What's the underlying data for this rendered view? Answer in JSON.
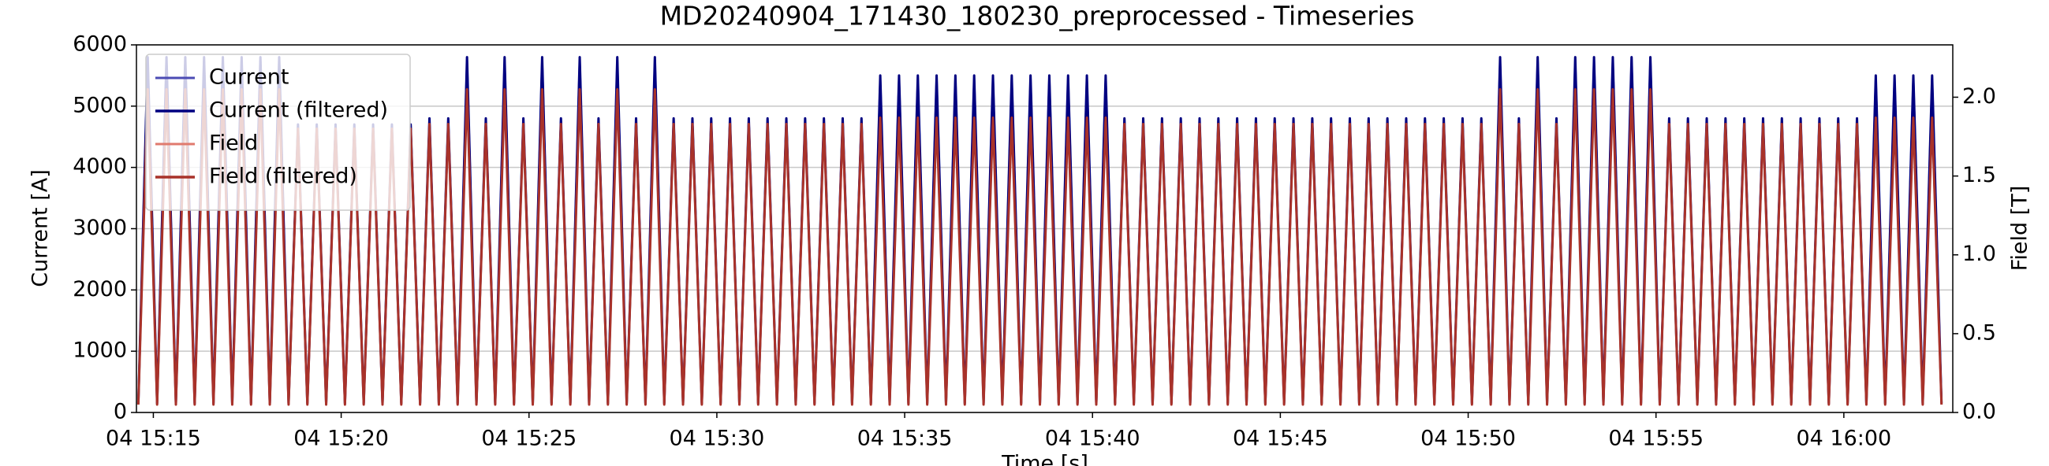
{
  "chart_data": {
    "type": "line",
    "title": "MD20240904_171430_180230_preprocessed - Timeseries",
    "xlabel": "Time [s]",
    "ylabel": "Current [A]",
    "y2label": "Field [T]",
    "xlim": [
      914.55,
      962.9
    ],
    "xticks": [
      {
        "value": 915,
        "label": "04 15:15"
      },
      {
        "value": 920,
        "label": "04 15:20"
      },
      {
        "value": 925,
        "label": "04 15:25"
      },
      {
        "value": 930,
        "label": "04 15:30"
      },
      {
        "value": 935,
        "label": "04 15:35"
      },
      {
        "value": 940,
        "label": "04 15:40"
      },
      {
        "value": 945,
        "label": "04 15:45"
      },
      {
        "value": 950,
        "label": "04 15:50"
      },
      {
        "value": 955,
        "label": "04 15:55"
      },
      {
        "value": 960,
        "label": "04 16:00"
      }
    ],
    "ylim": [
      0,
      6000
    ],
    "yticks": [
      0,
      1000,
      2000,
      3000,
      4000,
      5000,
      6000
    ],
    "y2lim": [
      0,
      2.332
    ],
    "y2ticks": [
      {
        "value": 0,
        "label": "0.0"
      },
      0.5,
      {
        "value": 1,
        "label": "1.0"
      },
      1.5,
      {
        "value": 2,
        "label": "2.0"
      }
    ],
    "grid": true,
    "legend": "upper left",
    "x": [
      914.6,
      914.85,
      915.1,
      915.35,
      915.6,
      915.85,
      916.1,
      916.35,
      916.6,
      916.85,
      917.1,
      917.35,
      917.6,
      917.85,
      918.1,
      918.35,
      918.6,
      918.85,
      919.1,
      919.35,
      919.6,
      919.85,
      920.1,
      920.35,
      920.6,
      920.85,
      921.1,
      921.35,
      921.6,
      921.85,
      922.1,
      922.35,
      922.6,
      922.85,
      923.1,
      923.35,
      923.6,
      923.85,
      924.1,
      924.35,
      924.6,
      924.85,
      925.1,
      925.35,
      925.6,
      925.85,
      926.1,
      926.35,
      926.6,
      926.85,
      927.1,
      927.35,
      927.6,
      927.85,
      928.1,
      928.35,
      928.6,
      928.85,
      929.1,
      929.35,
      929.6,
      929.85,
      930.1,
      930.35,
      930.6,
      930.85,
      931.1,
      931.35,
      931.6,
      931.85,
      932.1,
      932.35,
      932.6,
      932.85,
      933.1,
      933.35,
      933.6,
      933.85,
      934.1,
      934.35,
      934.6,
      934.85,
      935.1,
      935.35,
      935.6,
      935.85,
      936.1,
      936.35,
      936.6,
      936.85,
      937.1,
      937.35,
      937.6,
      937.85,
      938.1,
      938.35,
      938.6,
      938.85,
      939.1,
      939.35,
      939.6,
      939.85,
      940.1,
      940.35,
      940.6,
      940.85,
      941.1,
      941.35,
      941.6,
      941.85,
      942.1,
      942.35,
      942.6,
      942.85,
      943.1,
      943.35,
      943.6,
      943.85,
      944.1,
      944.35,
      944.6,
      944.85,
      945.1,
      945.35,
      945.6,
      945.85,
      946.1,
      946.35,
      946.6,
      946.85,
      947.1,
      947.35,
      947.6,
      947.85,
      948.1,
      948.35,
      948.6,
      948.85,
      949.1,
      949.35,
      949.6,
      949.85,
      950.1,
      950.35,
      950.6,
      950.85,
      951.1,
      951.35,
      951.6,
      951.85,
      952.1,
      952.35,
      952.6,
      952.85,
      953.1,
      953.35,
      953.6,
      953.85,
      954.1,
      954.35,
      954.6,
      954.85,
      955.1,
      955.35,
      955.6,
      955.85,
      956.1,
      956.35,
      956.6,
      956.85,
      957.1,
      957.35,
      957.6,
      957.85,
      958.1,
      958.35,
      958.6,
      958.85,
      959.1,
      959.35,
      959.6,
      959.85,
      960.1,
      960.35,
      960.6,
      960.85,
      961.1,
      961.35,
      961.6,
      961.85,
      962.1,
      962.35,
      962.6
    ],
    "series": [
      {
        "name": "Current",
        "color": "#4b4bb4",
        "values": [
          150,
          5800,
          150,
          5800,
          150,
          5800,
          150,
          5800,
          150,
          5800,
          150,
          5800,
          150,
          5800,
          150,
          5800,
          150,
          4700,
          150,
          4700,
          150,
          4700,
          150,
          4700,
          150,
          4700,
          150,
          4700,
          150,
          4700,
          150,
          4800,
          150,
          4800,
          150,
          5800,
          150,
          4800,
          150,
          5800,
          150,
          4800,
          150,
          5800,
          150,
          4800,
          150,
          5800,
          150,
          4800,
          150,
          5800,
          150,
          4800,
          150,
          5800,
          150,
          4800,
          150,
          4800,
          150,
          4800,
          150,
          4800,
          150,
          4800,
          150,
          4800,
          150,
          4800,
          150,
          4800,
          150,
          4800,
          150,
          4800,
          150,
          4800,
          150,
          5500,
          150,
          5500,
          150,
          5500,
          150,
          5500,
          150,
          5500,
          150,
          5500,
          150,
          5500,
          150,
          5500,
          150,
          5500,
          150,
          5500,
          150,
          5500,
          150,
          5500,
          150,
          5500,
          150,
          4800,
          150,
          4800,
          150,
          4800,
          150,
          4800,
          150,
          4800,
          150,
          4800,
          150,
          4800,
          150,
          4800,
          150,
          4800,
          150,
          4800,
          150,
          4800,
          150,
          4800,
          150,
          4800,
          150,
          4800,
          150,
          4800,
          150,
          4800,
          150,
          4800,
          150,
          4800,
          150,
          4800,
          150,
          4800,
          150,
          5800,
          150,
          4800,
          150,
          5800,
          150,
          4800,
          150,
          5800,
          150,
          5800,
          150,
          5800,
          150,
          5800,
          150,
          5800,
          150,
          4800,
          150,
          4800,
          150,
          4800,
          150,
          4800,
          150,
          4800,
          150,
          4800,
          150,
          4800,
          150,
          4800,
          150,
          4800,
          150,
          4800,
          150,
          4800,
          150,
          5500,
          150,
          5500,
          150,
          5500,
          150,
          5500,
          150
        ]
      },
      {
        "name": "Current (filtered)",
        "color": "#000080",
        "values": [
          150,
          5800,
          150,
          5800,
          150,
          5800,
          150,
          5800,
          150,
          5800,
          150,
          5800,
          150,
          5800,
          150,
          5800,
          150,
          4700,
          150,
          4700,
          150,
          4700,
          150,
          4700,
          150,
          4700,
          150,
          4700,
          150,
          4700,
          150,
          4800,
          150,
          4800,
          150,
          5800,
          150,
          4800,
          150,
          5800,
          150,
          4800,
          150,
          5800,
          150,
          4800,
          150,
          5800,
          150,
          4800,
          150,
          5800,
          150,
          4800,
          150,
          5800,
          150,
          4800,
          150,
          4800,
          150,
          4800,
          150,
          4800,
          150,
          4800,
          150,
          4800,
          150,
          4800,
          150,
          4800,
          150,
          4800,
          150,
          4800,
          150,
          4800,
          150,
          5500,
          150,
          5500,
          150,
          5500,
          150,
          5500,
          150,
          5500,
          150,
          5500,
          150,
          5500,
          150,
          5500,
          150,
          5500,
          150,
          5500,
          150,
          5500,
          150,
          5500,
          150,
          5500,
          150,
          4800,
          150,
          4800,
          150,
          4800,
          150,
          4800,
          150,
          4800,
          150,
          4800,
          150,
          4800,
          150,
          4800,
          150,
          4800,
          150,
          4800,
          150,
          4800,
          150,
          4800,
          150,
          4800,
          150,
          4800,
          150,
          4800,
          150,
          4800,
          150,
          4800,
          150,
          4800,
          150,
          4800,
          150,
          4800,
          150,
          5800,
          150,
          4800,
          150,
          5800,
          150,
          4800,
          150,
          5800,
          150,
          5800,
          150,
          5800,
          150,
          5800,
          150,
          5800,
          150,
          4800,
          150,
          4800,
          150,
          4800,
          150,
          4800,
          150,
          4800,
          150,
          4800,
          150,
          4800,
          150,
          4800,
          150,
          4800,
          150,
          4800,
          150,
          4800,
          150,
          5500,
          150,
          5500,
          150,
          5500,
          150,
          5500,
          150
        ]
      },
      {
        "name": "Field",
        "color": "#e07a6e",
        "axis": "y2",
        "values": [
          0.05,
          2.05,
          0.05,
          2.05,
          0.05,
          2.05,
          0.05,
          2.05,
          0.05,
          2.05,
          0.05,
          2.05,
          0.05,
          2.05,
          0.05,
          2.05,
          0.05,
          1.8,
          0.05,
          1.8,
          0.05,
          1.8,
          0.05,
          1.8,
          0.05,
          1.8,
          0.05,
          1.8,
          0.05,
          1.8,
          0.05,
          1.83,
          0.05,
          1.83,
          0.05,
          2.05,
          0.05,
          1.83,
          0.05,
          2.05,
          0.05,
          1.83,
          0.05,
          2.05,
          0.05,
          1.83,
          0.05,
          2.05,
          0.05,
          1.83,
          0.05,
          2.05,
          0.05,
          1.83,
          0.05,
          2.05,
          0.05,
          1.83,
          0.05,
          1.83,
          0.05,
          1.83,
          0.05,
          1.83,
          0.05,
          1.83,
          0.05,
          1.83,
          0.05,
          1.83,
          0.05,
          1.83,
          0.05,
          1.83,
          0.05,
          1.83,
          0.05,
          1.83,
          0.05,
          1.87,
          0.05,
          1.87,
          0.05,
          1.87,
          0.05,
          1.87,
          0.05,
          1.87,
          0.05,
          1.87,
          0.05,
          1.87,
          0.05,
          1.87,
          0.05,
          1.87,
          0.05,
          1.87,
          0.05,
          1.87,
          0.05,
          1.87,
          0.05,
          1.87,
          0.05,
          1.83,
          0.05,
          1.83,
          0.05,
          1.83,
          0.05,
          1.83,
          0.05,
          1.83,
          0.05,
          1.83,
          0.05,
          1.83,
          0.05,
          1.83,
          0.05,
          1.83,
          0.05,
          1.83,
          0.05,
          1.83,
          0.05,
          1.83,
          0.05,
          1.83,
          0.05,
          1.83,
          0.05,
          1.83,
          0.05,
          1.83,
          0.05,
          1.83,
          0.05,
          1.83,
          0.05,
          1.83,
          0.05,
          1.83,
          0.05,
          2.05,
          0.05,
          1.83,
          0.05,
          2.05,
          0.05,
          1.83,
          0.05,
          2.05,
          0.05,
          2.05,
          0.05,
          2.05,
          0.05,
          2.05,
          0.05,
          2.05,
          0.05,
          1.83,
          0.05,
          1.83,
          0.05,
          1.83,
          0.05,
          1.83,
          0.05,
          1.83,
          0.05,
          1.83,
          0.05,
          1.83,
          0.05,
          1.83,
          0.05,
          1.83,
          0.05,
          1.83,
          0.05,
          1.83,
          0.05,
          1.87,
          0.05,
          1.87,
          0.05,
          1.87,
          0.05,
          1.87,
          0.05
        ]
      },
      {
        "name": "Field (filtered)",
        "color": "#a8322a",
        "axis": "y2",
        "values": [
          0.05,
          2.05,
          0.05,
          2.05,
          0.05,
          2.05,
          0.05,
          2.05,
          0.05,
          2.05,
          0.05,
          2.05,
          0.05,
          2.05,
          0.05,
          2.05,
          0.05,
          1.8,
          0.05,
          1.8,
          0.05,
          1.8,
          0.05,
          1.8,
          0.05,
          1.8,
          0.05,
          1.8,
          0.05,
          1.8,
          0.05,
          1.83,
          0.05,
          1.83,
          0.05,
          2.05,
          0.05,
          1.83,
          0.05,
          2.05,
          0.05,
          1.83,
          0.05,
          2.05,
          0.05,
          1.83,
          0.05,
          2.05,
          0.05,
          1.83,
          0.05,
          2.05,
          0.05,
          1.83,
          0.05,
          2.05,
          0.05,
          1.83,
          0.05,
          1.83,
          0.05,
          1.83,
          0.05,
          1.83,
          0.05,
          1.83,
          0.05,
          1.83,
          0.05,
          1.83,
          0.05,
          1.83,
          0.05,
          1.83,
          0.05,
          1.83,
          0.05,
          1.83,
          0.05,
          1.87,
          0.05,
          1.87,
          0.05,
          1.87,
          0.05,
          1.87,
          0.05,
          1.87,
          0.05,
          1.87,
          0.05,
          1.87,
          0.05,
          1.87,
          0.05,
          1.87,
          0.05,
          1.87,
          0.05,
          1.87,
          0.05,
          1.87,
          0.05,
          1.87,
          0.05,
          1.83,
          0.05,
          1.83,
          0.05,
          1.83,
          0.05,
          1.83,
          0.05,
          1.83,
          0.05,
          1.83,
          0.05,
          1.83,
          0.05,
          1.83,
          0.05,
          1.83,
          0.05,
          1.83,
          0.05,
          1.83,
          0.05,
          1.83,
          0.05,
          1.83,
          0.05,
          1.83,
          0.05,
          1.83,
          0.05,
          1.83,
          0.05,
          1.83,
          0.05,
          1.83,
          0.05,
          1.83,
          0.05,
          1.83,
          0.05,
          2.05,
          0.05,
          1.83,
          0.05,
          2.05,
          0.05,
          1.83,
          0.05,
          2.05,
          0.05,
          2.05,
          0.05,
          2.05,
          0.05,
          2.05,
          0.05,
          2.05,
          0.05,
          1.83,
          0.05,
          1.83,
          0.05,
          1.83,
          0.05,
          1.83,
          0.05,
          1.83,
          0.05,
          1.83,
          0.05,
          1.83,
          0.05,
          1.83,
          0.05,
          1.83,
          0.05,
          1.83,
          0.05,
          1.83,
          0.05,
          1.87,
          0.05,
          1.87,
          0.05,
          1.87,
          0.05,
          1.87,
          0.05
        ]
      }
    ]
  }
}
